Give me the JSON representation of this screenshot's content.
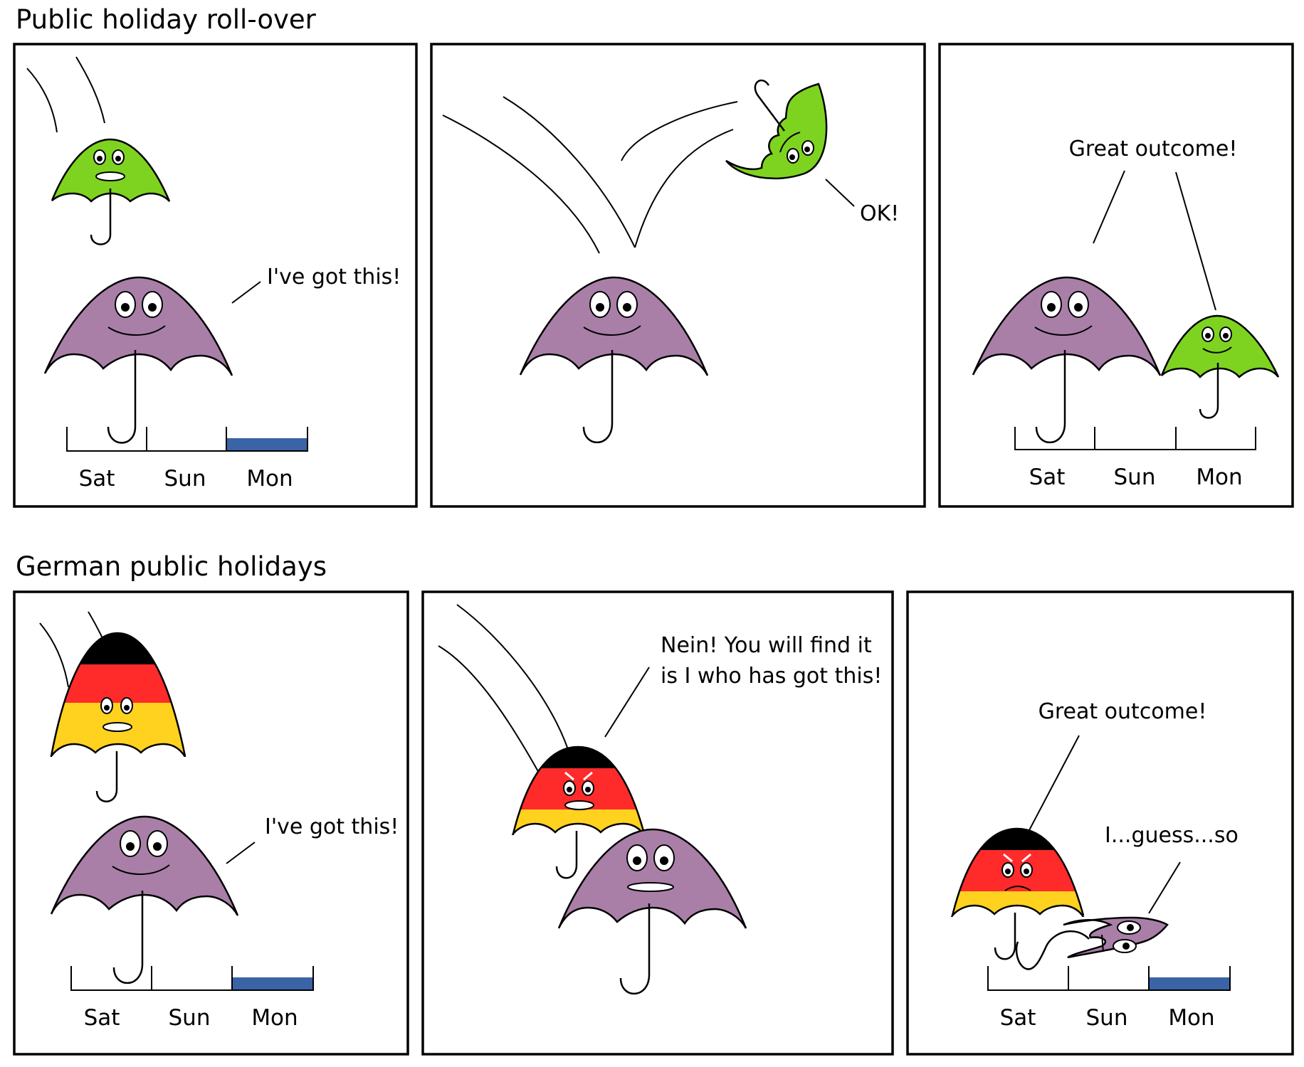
{
  "strips": [
    {
      "title": "Public holiday roll-over",
      "panels": [
        {
          "speech": "I've got this!",
          "days": [
            "Sat",
            "Sun",
            "Mon"
          ]
        },
        {
          "speech": "OK!"
        },
        {
          "speech": "Great outcome!",
          "days": [
            "Sat",
            "Sun",
            "Mon"
          ]
        }
      ]
    },
    {
      "title": "German public holidays",
      "panels": [
        {
          "speech": "I've got this!",
          "days": [
            "Sat",
            "Sun",
            "Mon"
          ]
        },
        {
          "speech_line1": "Nein! You will find it",
          "speech_line2": "is I who has got this!"
        },
        {
          "speech": "Great outcome!",
          "speech2": "I...guess...so",
          "days": [
            "Sat",
            "Sun",
            "Mon"
          ]
        }
      ]
    }
  ],
  "colors": {
    "purple_umbrella": "#a97fa8",
    "green_umbrella": "#7ed321",
    "holiday_bar": "#3b64a6",
    "flag_black": "#000000",
    "flag_red": "#ff2b2b",
    "flag_gold": "#ffd21f"
  }
}
